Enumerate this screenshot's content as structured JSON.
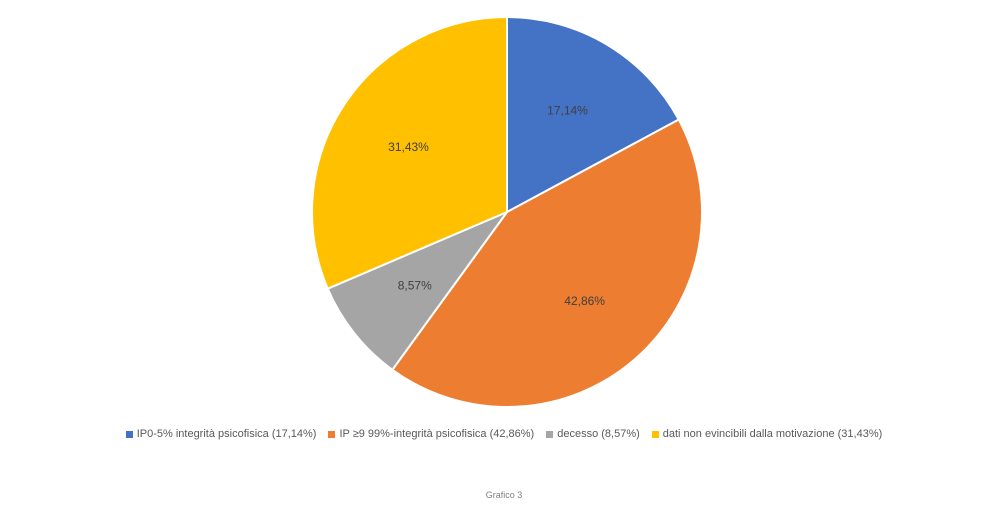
{
  "chart_data": {
    "type": "pie",
    "categories": [
      "IP0-5% integrità psicofisica",
      "IP ≥9 99%-integrità psicofisica",
      "decesso",
      "dati non evincibili dalla motivazione"
    ],
    "values": [
      17.14,
      42.86,
      8.57,
      31.43
    ],
    "slice_labels": [
      "17,14%",
      "42,86%",
      "8,57%",
      "31,43%"
    ],
    "legend_labels": [
      "IP0-5% integrità psicofisica (17,14%)",
      "IP ≥9 99%-integrità psicofisica (42,86%)",
      "decesso (8,57%)",
      "dati non evincibili dalla motivazione (31,43%)"
    ],
    "colors": [
      "#4472c4",
      "#ed7d31",
      "#a5a5a5",
      "#ffc000"
    ],
    "legend_position": "bottom",
    "start_angle": "12 o'clock",
    "direction": "clockwise"
  },
  "caption": "Grafico 3"
}
